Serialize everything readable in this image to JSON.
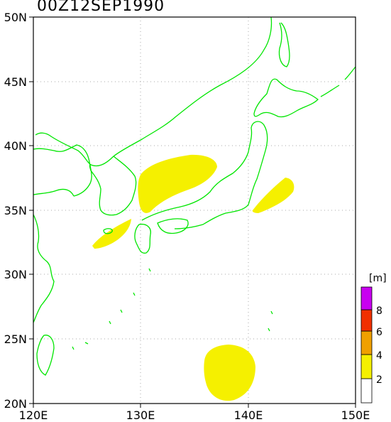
{
  "title": "00Z12SEP1990",
  "axes": {
    "lon_labels": [
      "120E",
      "130E",
      "140E",
      "150E"
    ],
    "lat_labels": [
      "20N",
      "25N",
      "30N",
      "35N",
      "40N",
      "45N",
      "50N"
    ]
  },
  "colorbar": {
    "unit": "[m]",
    "levels": [
      "2",
      "4",
      "6",
      "8"
    ],
    "colors": [
      "#ffffff",
      "#f5f000",
      "#f0a000",
      "#f03000",
      "#c800f0"
    ]
  },
  "colors": {
    "coastline": "#00e600",
    "fill_2_4": "#f5f000",
    "grid": "#aaaaaa"
  }
}
